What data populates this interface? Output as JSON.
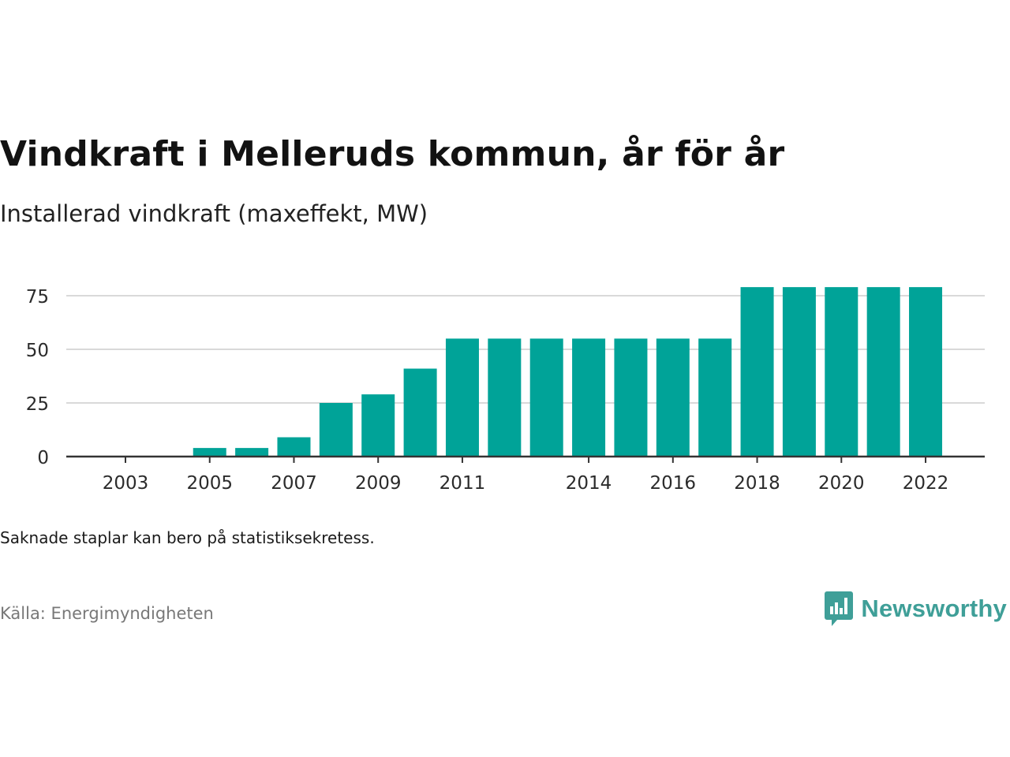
{
  "title": "Vindkraft i Melleruds kommun, år för år",
  "subtitle": "Installerad vindkraft (maxeffekt, MW)",
  "note": "Saknade staplar kan bero på statistiksekretess.",
  "source": "Källa: Energimyndigheten",
  "brand": {
    "name": "Newsworthy",
    "icon": "newsworthy-logo-icon",
    "color": "#3f9f98"
  },
  "colors": {
    "bar": "#00a398",
    "grid": "#d9d9d9",
    "axis": "#333333",
    "tick_text": "#2b2b2b"
  },
  "chart_data": {
    "type": "bar",
    "x": [
      2003,
      2004,
      2005,
      2006,
      2007,
      2008,
      2009,
      2010,
      2011,
      2012,
      2013,
      2014,
      2015,
      2016,
      2017,
      2018,
      2019,
      2020,
      2021,
      2022
    ],
    "values": [
      0,
      0,
      4,
      4,
      9,
      25,
      29,
      41,
      55,
      55,
      55,
      55,
      55,
      55,
      55,
      79,
      79,
      79,
      79,
      79
    ],
    "x_tick_labels": [
      "2003",
      "2005",
      "2007",
      "2009",
      "2011",
      "2014",
      "2016",
      "2018",
      "2020",
      "2022"
    ],
    "y_ticks": [
      0,
      25,
      50,
      75
    ],
    "ylim": [
      0,
      79
    ],
    "grid": true,
    "legend": false,
    "xlabel": "",
    "ylabel": ""
  }
}
